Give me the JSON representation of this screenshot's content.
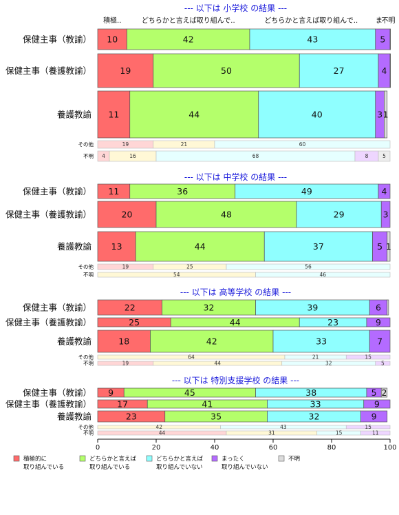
{
  "chart_data": {
    "type": "bar",
    "orientation": "horizontal",
    "stacked": true,
    "xlim": [
      0,
      100
    ],
    "x_ticks": [
      "0",
      "20",
      "40",
      "60",
      "80",
      "100"
    ],
    "colors": [
      "#ff6b6b",
      "#b4ff6b",
      "#8fffff",
      "#b46bff",
      "#dcdcdc"
    ],
    "legend": {
      "position": "bottom",
      "entries": [
        "積極的に\n取り組んでいる",
        "どちらかと言えば\n取り組んでいる",
        "どちらかと言えば\n取り組んでいない",
        "まったく\n取り組んでいない",
        "不明"
      ]
    },
    "top_category_labels": [
      "積極..",
      "どちらかと言えば取り組んで..",
      "どちらかと言えば取り組んで..",
      "ま",
      "不明"
    ],
    "sections": [
      {
        "title": "--- 以下は 小学校 の結果 ---",
        "rows": [
          {
            "label": "保健主事（教諭）",
            "values": [
              10,
              42,
              43,
              5,
              0.5
            ],
            "labels": [
              "10",
              "42",
              "43",
              "5",
              ""
            ]
          },
          {
            "label": "保健主事（養護教諭）",
            "values": [
              19,
              50,
              27,
              4,
              0.5
            ],
            "labels": [
              "19",
              "50",
              "27",
              "4",
              ""
            ]
          },
          {
            "label": "養護教諭",
            "values": [
              11,
              44,
              40,
              3,
              1
            ],
            "labels": [
              "11",
              "44",
              "40",
              "3",
              "1"
            ]
          },
          {
            "label": "その他",
            "values": [
              19,
              21,
              60,
              0,
              0
            ],
            "labels": [
              "19",
              "21",
              "60",
              "",
              ""
            ]
          },
          {
            "label": "不明",
            "values": [
              4,
              16,
              68,
              8,
              5
            ],
            "labels": [
              "4",
              "16",
              "68",
              "8",
              "5"
            ]
          }
        ]
      },
      {
        "title": "--- 以下は 中学校 の結果 ---",
        "rows": [
          {
            "label": "保健主事（教諭）",
            "values": [
              11,
              36,
              49,
              4,
              0
            ],
            "labels": [
              "11",
              "36",
              "49",
              "4",
              ""
            ]
          },
          {
            "label": "保健主事（養護教諭）",
            "values": [
              20,
              48,
              29,
              3,
              0
            ],
            "labels": [
              "20",
              "48",
              "29",
              "3",
              ""
            ]
          },
          {
            "label": "養護教諭",
            "values": [
              13,
              44,
              37,
              5,
              1
            ],
            "labels": [
              "13",
              "44",
              "37",
              "5",
              "1"
            ]
          },
          {
            "label": "その他",
            "values": [
              19,
              25,
              56,
              0,
              0
            ],
            "labels": [
              "19",
              "25",
              "56",
              "",
              ""
            ]
          },
          {
            "label": "不明",
            "values": [
              0,
              54,
              46,
              0,
              0
            ],
            "labels": [
              "",
              "54",
              "46",
              "",
              ""
            ]
          }
        ]
      },
      {
        "title": "--- 以下は 高等学校 の結果 ---",
        "rows": [
          {
            "label": "保健主事（教諭）",
            "values": [
              22,
              32,
              39,
              6,
              0.5
            ],
            "labels": [
              "22",
              "32",
              "39",
              "6",
              ""
            ]
          },
          {
            "label": "保健主事（養護教諭）",
            "values": [
              25,
              44,
              23,
              9,
              0
            ],
            "labels": [
              "25",
              "44",
              "23",
              "9",
              ""
            ]
          },
          {
            "label": "養護教諭",
            "values": [
              18,
              42,
              33,
              7,
              0
            ],
            "labels": [
              "18",
              "42",
              "33",
              "7",
              ""
            ]
          },
          {
            "label": "その他",
            "values": [
              0,
              64,
              21,
              15,
              0
            ],
            "labels": [
              "",
              "64",
              "21",
              "15",
              ""
            ]
          },
          {
            "label": "不明",
            "values": [
              19,
              44,
              32,
              5,
              0
            ],
            "labels": [
              "19",
              "44",
              "32",
              "5",
              ""
            ]
          }
        ]
      },
      {
        "title": "--- 以下は 特別支援学校 の結果 ---",
        "rows": [
          {
            "label": "保健主事（教諭）",
            "values": [
              9,
              45,
              38,
              5,
              2
            ],
            "labels": [
              "9",
              "45",
              "38",
              "5",
              "2"
            ]
          },
          {
            "label": "保健主事（養護教諭）",
            "values": [
              17,
              41,
              33,
              9,
              0
            ],
            "labels": [
              "17",
              "41",
              "33",
              "9",
              ""
            ]
          },
          {
            "label": "養護教諭",
            "values": [
              23,
              35,
              32,
              9,
              0
            ],
            "labels": [
              "23",
              "35",
              "32",
              "9",
              ""
            ]
          },
          {
            "label": "その他",
            "values": [
              0,
              42,
              43,
              15,
              0
            ],
            "labels": [
              "",
              "42",
              "43",
              "15",
              ""
            ]
          },
          {
            "label": "不明",
            "values": [
              44,
              31,
              15,
              11,
              0
            ],
            "labels": [
              "44",
              "31",
              "15",
              "11",
              ""
            ]
          }
        ]
      }
    ]
  }
}
